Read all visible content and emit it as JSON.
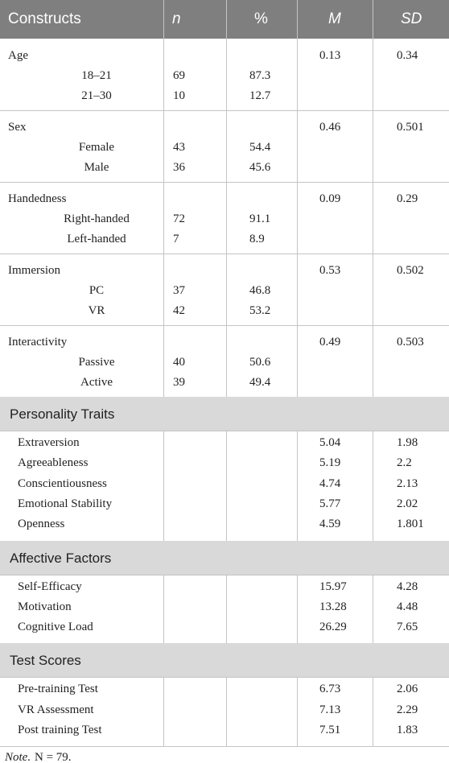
{
  "header": {
    "columns": [
      "Constructs",
      "n",
      "%",
      "M",
      "SD"
    ]
  },
  "groups": [
    {
      "label": "Age",
      "M": 0.13,
      "SD": 0.34,
      "items": [
        {
          "label": "18–21",
          "n": 69,
          "pct": 87.3
        },
        {
          "label": "21–30",
          "n": 10,
          "pct": 12.7
        }
      ]
    },
    {
      "label": "Sex",
      "M": 0.46,
      "SD": 0.501,
      "items": [
        {
          "label": "Female",
          "n": 43,
          "pct": 54.4
        },
        {
          "label": "Male",
          "n": 36,
          "pct": 45.6
        }
      ]
    },
    {
      "label": "Handedness",
      "M": 0.09,
      "SD": 0.29,
      "items": [
        {
          "label": "Right-handed",
          "n": 72,
          "pct": 91.1
        },
        {
          "label": "Left-handed",
          "n": 7,
          "pct": 8.9
        }
      ]
    },
    {
      "label": "Immersion",
      "M": 0.53,
      "SD": 0.502,
      "items": [
        {
          "label": "PC",
          "n": 37,
          "pct": 46.8
        },
        {
          "label": "VR",
          "n": 42,
          "pct": 53.2
        }
      ]
    },
    {
      "label": "Interactivity",
      "M": 0.49,
      "SD": 0.503,
      "items": [
        {
          "label": "Passive",
          "n": 40,
          "pct": 50.6
        },
        {
          "label": "Active",
          "n": 39,
          "pct": 49.4
        }
      ]
    }
  ],
  "sections": [
    {
      "title": "Personality Traits",
      "rows": [
        {
          "label": "Extraversion",
          "M": 5.04,
          "SD": 1.98
        },
        {
          "label": "Agreeableness",
          "M": 5.19,
          "SD": 2.2
        },
        {
          "label": "Conscientiousness",
          "M": 4.74,
          "SD": 2.13
        },
        {
          "label": "Emotional Stability",
          "M": 5.77,
          "SD": 2.02
        },
        {
          "label": "Openness",
          "M": 4.59,
          "SD": 1.801
        }
      ]
    },
    {
      "title": "Affective Factors",
      "rows": [
        {
          "label": "Self-Efficacy",
          "M": 15.97,
          "SD": 4.28
        },
        {
          "label": "Motivation",
          "M": 13.28,
          "SD": 4.48
        },
        {
          "label": "Cognitive Load",
          "M": 26.29,
          "SD": 7.65
        }
      ]
    },
    {
      "title": "Test Scores",
      "rows": [
        {
          "label": "Pre-training Test",
          "M": 6.73,
          "SD": 2.06
        },
        {
          "label": "VR Assessment",
          "M": 7.13,
          "SD": 2.29
        },
        {
          "label": "Post training Test",
          "M": 7.51,
          "SD": 1.83
        }
      ]
    }
  ],
  "note": {
    "label": "Note.",
    "text": "N = 79."
  }
}
